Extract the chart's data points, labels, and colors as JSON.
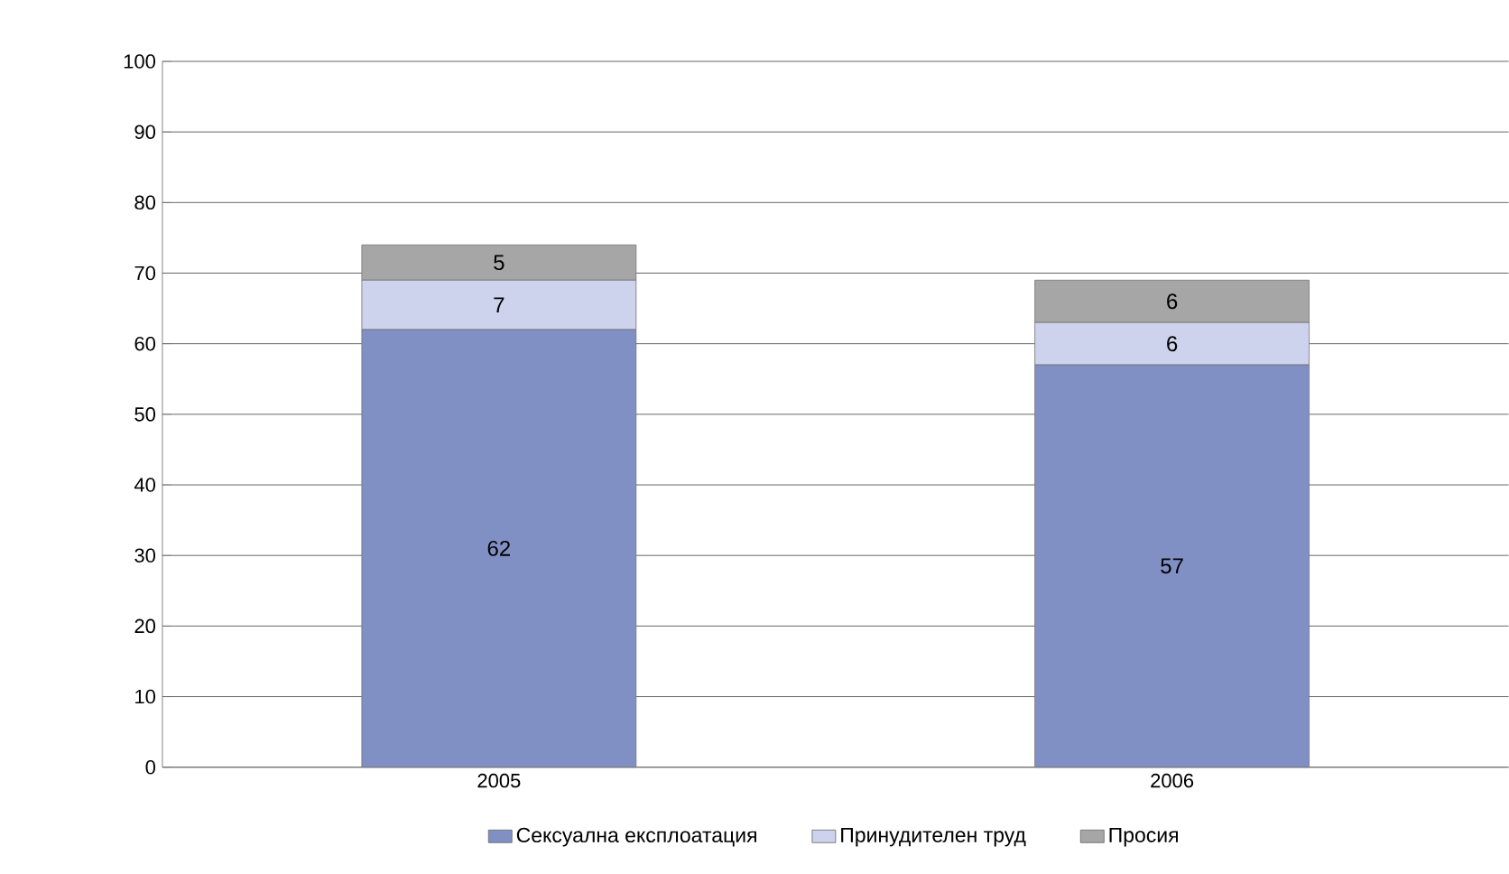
{
  "chart_data": {
    "type": "bar",
    "stacked": true,
    "categories": [
      "2005",
      "2006"
    ],
    "series": [
      {
        "name": "Сексуална експлоатация",
        "color": "#8090c4",
        "values": [
          62,
          57
        ]
      },
      {
        "name": "Принудителен труд",
        "color": "#cdd3ec",
        "values": [
          7,
          6
        ]
      },
      {
        "name": "Просия",
        "color": "#a6a6a6",
        "values": [
          5,
          6
        ]
      }
    ],
    "ylim": [
      0,
      100
    ],
    "yticks": [
      0,
      10,
      20,
      30,
      40,
      50,
      60,
      70,
      80,
      90,
      100
    ],
    "grid": "y",
    "legend": "bottom",
    "data_labels": true
  }
}
